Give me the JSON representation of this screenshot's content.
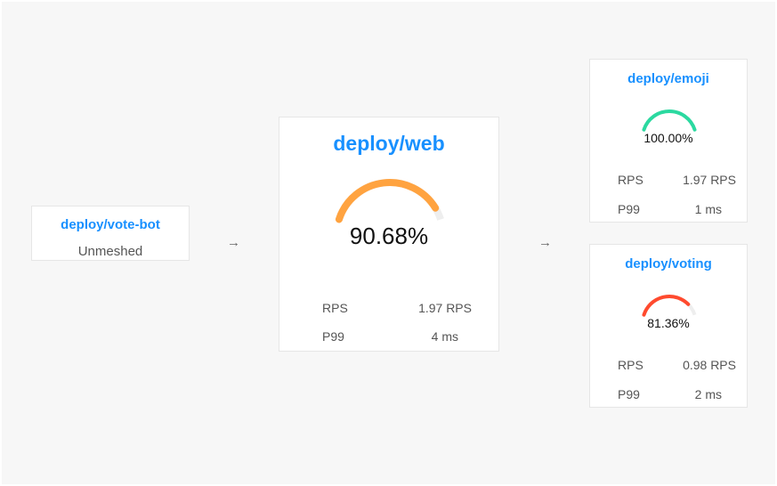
{
  "nodes": {
    "source": {
      "name": "deploy/vote-bot",
      "status": "Unmeshed"
    },
    "web": {
      "name": "deploy/web",
      "success_rate": "90.68%",
      "success_value": 90.68,
      "rps_label": "RPS",
      "rps": "1.97 RPS",
      "p99_label": "P99",
      "p99": "4 ms",
      "color": "#ffa340"
    },
    "emoji": {
      "name": "deploy/emoji",
      "success_rate": "100.00%",
      "success_value": 100,
      "rps_label": "RPS",
      "rps": "1.97 RPS",
      "p99_label": "P99",
      "p99": "1 ms",
      "color": "#2bd9a0"
    },
    "voting": {
      "name": "deploy/voting",
      "success_rate": "81.36%",
      "success_value": 81.36,
      "rps_label": "RPS",
      "rps": "0.98 RPS",
      "p99_label": "P99",
      "p99": "2 ms",
      "color": "#ff4a2e"
    }
  },
  "arrows": {
    "a1": "→",
    "a2": "→"
  },
  "gauge_track_color": "#eeeeee"
}
